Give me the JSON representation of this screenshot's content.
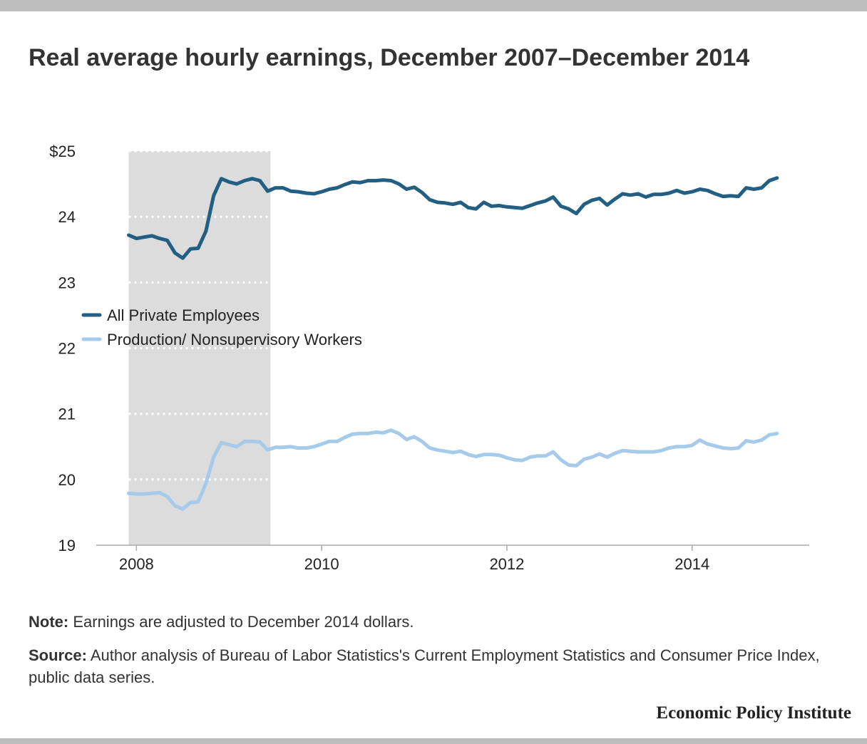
{
  "title": "Real average hourly earnings, December 2007–December 2014",
  "note": {
    "label": "Note:",
    "text": " Earnings are adjusted to December 2014 dollars."
  },
  "source": {
    "label": "Source:",
    "text": " Author analysis of Bureau of Labor Statistics's Current Employment Statistics and Consumer Price Index, public data series."
  },
  "brand": "Economic Policy Institute",
  "colors": {
    "all_private": "#235f82",
    "production": "#a6cbea",
    "recession": "#dcdcdc",
    "gridline": "#ffffff",
    "axis": "#aaaaaa"
  },
  "chart_data": {
    "type": "line",
    "title": "Real average hourly earnings, December 2007–December 2014",
    "xlabel": "",
    "ylabel": "",
    "x_start": "2007-12",
    "x_frequency": "monthly",
    "xlim": [
      "2007-12",
      "2014-12"
    ],
    "ylim": [
      19,
      25
    ],
    "x_ticks": [
      "2008",
      "2010",
      "2012",
      "2014"
    ],
    "y_ticks": [
      "19",
      "20",
      "21",
      "22",
      "23",
      "24",
      "$25"
    ],
    "grid": "horizontal dotted",
    "legend_position": "middle-left",
    "shaded_region": {
      "label": "",
      "start": "2007-12",
      "end": "2009-06"
    },
    "series": [
      {
        "name": "All Private Employees",
        "color": "#235f82",
        "values": [
          23.72,
          23.67,
          23.69,
          23.71,
          23.67,
          23.64,
          23.45,
          23.37,
          23.51,
          23.52,
          23.78,
          24.32,
          24.58,
          24.53,
          24.5,
          24.55,
          24.58,
          24.55,
          24.39,
          24.44,
          24.44,
          24.39,
          24.38,
          24.36,
          24.35,
          24.38,
          24.42,
          24.44,
          24.49,
          24.53,
          24.52,
          24.55,
          24.55,
          24.56,
          24.55,
          24.5,
          24.42,
          24.45,
          24.37,
          24.26,
          24.22,
          24.21,
          24.19,
          24.22,
          24.14,
          24.12,
          24.22,
          24.16,
          24.17,
          24.15,
          24.14,
          24.13,
          24.17,
          24.21,
          24.24,
          24.3,
          24.16,
          24.12,
          24.05,
          24.19,
          24.25,
          24.28,
          24.18,
          24.27,
          24.35,
          24.33,
          24.35,
          24.3,
          24.34,
          24.34,
          24.36,
          24.4,
          24.36,
          24.38,
          24.42,
          24.4,
          24.35,
          24.31,
          24.32,
          24.31,
          24.44,
          24.42,
          24.44,
          24.55,
          24.59
        ]
      },
      {
        "name": "Production/ Nonsupervisory Workers",
        "color": "#a6cbea",
        "values": [
          19.79,
          19.78,
          19.78,
          19.79,
          19.8,
          19.74,
          19.6,
          19.55,
          19.65,
          19.66,
          19.94,
          20.34,
          20.56,
          20.53,
          20.5,
          20.58,
          20.58,
          20.57,
          20.45,
          20.49,
          20.49,
          20.5,
          20.48,
          20.48,
          20.5,
          20.54,
          20.58,
          20.58,
          20.64,
          20.69,
          20.7,
          20.7,
          20.72,
          20.71,
          20.75,
          20.7,
          20.61,
          20.65,
          20.58,
          20.48,
          20.45,
          20.43,
          20.41,
          20.43,
          20.38,
          20.35,
          20.38,
          20.38,
          20.37,
          20.33,
          20.3,
          20.29,
          20.34,
          20.36,
          20.36,
          20.42,
          20.3,
          20.22,
          20.21,
          20.31,
          20.34,
          20.39,
          20.34,
          20.4,
          20.44,
          20.43,
          20.42,
          20.42,
          20.42,
          20.44,
          20.48,
          20.5,
          20.5,
          20.52,
          20.6,
          20.54,
          20.51,
          20.48,
          20.47,
          20.48,
          20.59,
          20.57,
          20.6,
          20.68,
          20.7
        ]
      }
    ]
  }
}
